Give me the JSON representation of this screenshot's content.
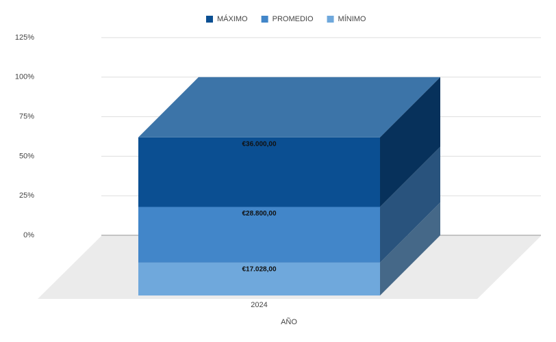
{
  "chart_data": {
    "type": "bar3d",
    "stacking": "percent",
    "categories": [
      "2024"
    ],
    "x_label": "AÑO",
    "series": [
      {
        "name": "MÁXIMO",
        "color": "#0b4f92",
        "values": [
          36000
        ],
        "value_labels": [
          "€36.000,00"
        ]
      },
      {
        "name": "PROMEDIO",
        "color": "#4286c9",
        "values": [
          28800
        ],
        "value_labels": [
          "€28.800,00"
        ]
      },
      {
        "name": "MÍNIMO",
        "color": "#6fa8dc",
        "values": [
          17028
        ],
        "value_labels": [
          "€17.028,00"
        ]
      }
    ],
    "ylim": [
      0,
      125
    ],
    "yticks": [
      {
        "value": 0,
        "label": "0%"
      },
      {
        "value": 25,
        "label": "25%"
      },
      {
        "value": 50,
        "label": "50%"
      },
      {
        "value": 75,
        "label": "75%"
      },
      {
        "value": 100,
        "label": "100%"
      },
      {
        "value": 125,
        "label": "125%"
      }
    ],
    "grid": true,
    "legend": "top"
  }
}
